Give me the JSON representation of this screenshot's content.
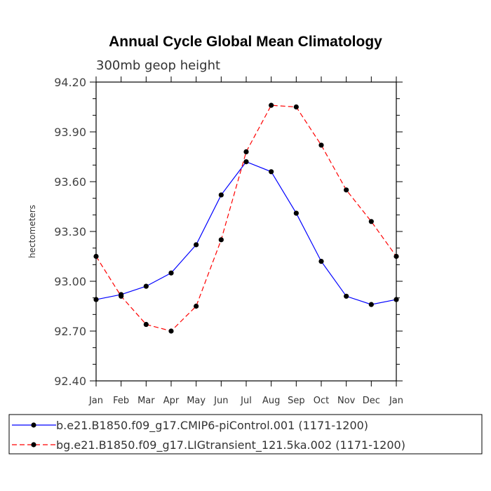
{
  "chart_data": {
    "type": "line",
    "title": "Annual Cycle Global Mean Climatology",
    "subtitle": "300mb geop height",
    "xlabel": "",
    "ylabel": "hectometers",
    "categories": [
      "Jan",
      "Feb",
      "Mar",
      "Apr",
      "May",
      "Jun",
      "Jul",
      "Aug",
      "Sep",
      "Oct",
      "Nov",
      "Dec",
      "Jan"
    ],
    "ylim": [
      92.4,
      94.2
    ],
    "yticks": [
      "92.40",
      "92.70",
      "93.00",
      "93.30",
      "93.60",
      "93.90",
      "94.20"
    ],
    "grid": false,
    "legend_position": "bottom",
    "series": [
      {
        "name": "b.e21.B1850.f09_g17.CMIP6-piControl.001 (1171-1200)",
        "color": "#0000ff",
        "line_style": "solid",
        "values": [
          92.89,
          92.92,
          92.97,
          93.05,
          93.22,
          93.52,
          93.72,
          93.66,
          93.41,
          93.12,
          92.91,
          92.86,
          92.89
        ]
      },
      {
        "name": "bg.e21.B1850.f09_g17.LIGtransient_121.5ka.002 (1171-1200)",
        "color": "#ff0000",
        "line_style": "dashed",
        "values": [
          93.15,
          92.91,
          92.74,
          92.7,
          92.85,
          93.25,
          93.78,
          94.06,
          94.05,
          93.82,
          93.55,
          93.36,
          93.15
        ]
      }
    ]
  }
}
